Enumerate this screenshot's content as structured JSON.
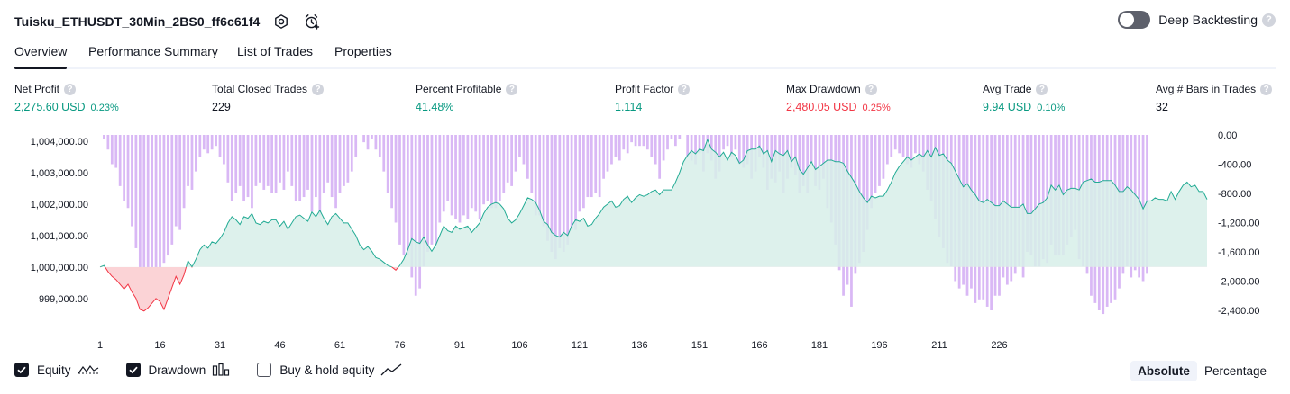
{
  "header": {
    "title": "Tuisku_ETHUSDT_30Min_2BS0_ff6c61f4",
    "deep_backtesting_label": "Deep Backtesting",
    "help_glyph": "?"
  },
  "tabs": [
    {
      "label": "Overview",
      "active": true
    },
    {
      "label": "Performance Summary",
      "active": false
    },
    {
      "label": "List of Trades",
      "active": false
    },
    {
      "label": "Properties",
      "active": false
    }
  ],
  "stats": [
    {
      "label": "Net Profit",
      "value": "2,275.60 USD",
      "sub": "0.23%",
      "color": "green"
    },
    {
      "label": "Total Closed Trades",
      "value": "229",
      "sub": "",
      "color": "dark"
    },
    {
      "label": "Percent Profitable",
      "value": "41.48%",
      "sub": "",
      "color": "green"
    },
    {
      "label": "Profit Factor",
      "value": "1.114",
      "sub": "",
      "color": "green"
    },
    {
      "label": "Max Drawdown",
      "value": "2,480.05 USD",
      "sub": "0.25%",
      "color": "red"
    },
    {
      "label": "Avg Trade",
      "value": "9.94 USD",
      "sub": "0.10%",
      "color": "green"
    },
    {
      "label": "Avg # Bars in Trades",
      "value": "32",
      "sub": "",
      "color": "dark"
    }
  ],
  "legend": {
    "equity_label": "Equity",
    "equity_checked": true,
    "drawdown_label": "Drawdown",
    "drawdown_checked": true,
    "buyhold_label": "Buy & hold equity",
    "buyhold_checked": false
  },
  "mode": {
    "absolute_label": "Absolute",
    "percentage_label": "Percentage",
    "active": "Absolute"
  },
  "colors": {
    "equity_line_up": "#22ab94",
    "equity_line_down": "#f23645",
    "equity_fill_up": "#d7efe9",
    "equity_fill_down": "#fbd3d6",
    "drawdown_bar": "#d9b8f5",
    "drawdown_bar_overlap": "#b9bbe6"
  },
  "chart_data": {
    "type": "area",
    "x_ticks": [
      1,
      16,
      31,
      46,
      61,
      76,
      91,
      106,
      121,
      136,
      151,
      166,
      181,
      196,
      211,
      226
    ],
    "left_axis": {
      "ticks": [
        1004000,
        1003000,
        1002000,
        1001000,
        1000000,
        999000
      ],
      "tick_labels": [
        "1,004,000.00",
        "1,003,000.00",
        "1,002,000.00",
        "1,001,000.00",
        "1,000,000.00",
        "999,000.00"
      ],
      "range": [
        998250,
        1004200
      ]
    },
    "right_axis": {
      "ticks": [
        0,
        -400,
        -800,
        -1200,
        -1600,
        -2000,
        -2400
      ],
      "tick_labels": [
        "0.00",
        "-400.00",
        "-800.00",
        "-1,200.00",
        "-1,600.00",
        "-2,000.00",
        "-2,400.00"
      ],
      "range": [
        -2560,
        0
      ]
    },
    "baseline": 1000000,
    "series": [
      {
        "name": "Equity",
        "values": [
          1000000,
          1000050,
          999850,
          999700,
          999600,
          999450,
          999300,
          999450,
          999200,
          999000,
          998650,
          998600,
          998700,
          998850,
          999000,
          998900,
          998650,
          999000,
          999350,
          999700,
          999450,
          999750,
          1000200,
          1000000,
          1000250,
          1000550,
          1000700,
          1000600,
          1000800,
          1000750,
          1000900,
          1001100,
          1001400,
          1001600,
          1001500,
          1001350,
          1001600,
          1001550,
          1001700,
          1001400,
          1001350,
          1001450,
          1001400,
          1001500,
          1001500,
          1001300,
          1001450,
          1001200,
          1001400,
          1001600,
          1001650,
          1001550,
          1001450,
          1001750,
          1001600,
          1001800,
          1001550,
          1001350,
          1001600,
          1001700,
          1001550,
          1001400,
          1001400,
          1001200,
          1001000,
          1000700,
          1000550,
          1000650,
          1000500,
          1000300,
          1000250,
          1000150,
          1000050,
          1000000,
          999900,
          1000050,
          1000250,
          1000550,
          1000900,
          1000800,
          1000750,
          1000950,
          1000700,
          1000500,
          1000700,
          1001000,
          1001300,
          1001150,
          1001100,
          1001300,
          1001200,
          1001250,
          1001300,
          1001100,
          1001250,
          1001400,
          1001700,
          1001900,
          1002000,
          1002050,
          1002000,
          1001850,
          1001550,
          1001400,
          1001500,
          1001700,
          1001950,
          1002200,
          1002150,
          1002050,
          1001800,
          1001450,
          1001350,
          1001100,
          1001000,
          1000950,
          1001100,
          1001000,
          1001300,
          1001500,
          1001450,
          1001550,
          1001300,
          1001350,
          1001550,
          1001700,
          1001900,
          1002000,
          1002100,
          1001900,
          1001950,
          1002150,
          1002250,
          1002050,
          1002200,
          1002300,
          1002250,
          1002300,
          1002400,
          1002450,
          1002300,
          1002450,
          1002450,
          1002450,
          1002700,
          1003000,
          1003350,
          1003550,
          1003700,
          1003600,
          1003750,
          1003700,
          1004050,
          1003750,
          1003650,
          1003500,
          1003650,
          1003400,
          1003650,
          1003550,
          1003300,
          1003400,
          1003700,
          1003750,
          1003750,
          1003850,
          1003600,
          1003700,
          1003350,
          1003700,
          1003600,
          1003550,
          1003700,
          1003350,
          1003500,
          1003100,
          1002950,
          1003150,
          1003350,
          1003100,
          1003200,
          1003300,
          1003400,
          1003400,
          1003350,
          1003350,
          1003300,
          1003050,
          1002850,
          1002650,
          1002400,
          1002200,
          1002050,
          1002250,
          1002200,
          1002250,
          1002250,
          1002450,
          1002700,
          1003000,
          1003200,
          1003350,
          1003500,
          1003400,
          1003500,
          1003600,
          1003500,
          1003700,
          1003500,
          1003800,
          1003550,
          1003600,
          1003400,
          1003300,
          1003050,
          1002800,
          1002550,
          1002650,
          1002450,
          1002300,
          1002100,
          1002050,
          1002150,
          1002050,
          1001950,
          1001950,
          1002100,
          1002000,
          1001900,
          1001900,
          1001900,
          1002000,
          1001700,
          1001700,
          1001850,
          1002000,
          1002050,
          1002200,
          1002600,
          1002450,
          1002600,
          1002300,
          1002450,
          1002500,
          1002500,
          1002450,
          1002700,
          1002750,
          1002800,
          1002700,
          1002700,
          1002750,
          1002750,
          1002750,
          1002600,
          1002400,
          1002400,
          1002550,
          1002450,
          1002300,
          1002150,
          1001850,
          1002100,
          1002100,
          1002200,
          1002150,
          1002150,
          1002100,
          1002400,
          1002150,
          1002400,
          1002600,
          1002700,
          1002550,
          1002600,
          1002400,
          1002400,
          1002150
        ]
      },
      {
        "name": "Drawdown",
        "values": [
          0,
          -60,
          -200,
          -400,
          -450,
          -700,
          -900,
          -1000,
          -1250,
          -1550,
          -1900,
          -2050,
          -2050,
          -2150,
          -2000,
          -1850,
          -1750,
          -1650,
          -1500,
          -1250,
          -1300,
          -1000,
          -700,
          -750,
          -500,
          -300,
          -200,
          -250,
          -200,
          -150,
          -300,
          -400,
          -650,
          -900,
          -800,
          -700,
          -900,
          -850,
          -1000,
          -700,
          -650,
          -750,
          -700,
          -800,
          -800,
          -650,
          -750,
          -500,
          -700,
          -900,
          -900,
          -850,
          -750,
          -1050,
          -850,
          -1100,
          -800,
          -650,
          -850,
          -1000,
          -800,
          -700,
          -650,
          -500,
          -300,
          0,
          -100,
          -200,
          -50,
          -200,
          -300,
          -500,
          -800,
          -1000,
          -1200,
          -1500,
          -1650,
          -1650,
          -1950,
          -2200,
          -2100,
          -1800,
          -1600,
          -1500,
          -1500,
          -1200,
          -1050,
          -900,
          -1100,
          -1150,
          -1200,
          -1100,
          -1150,
          -1000,
          -1050,
          -1150,
          -950,
          -900,
          -1000,
          -1000,
          -900,
          -800,
          -650,
          -700,
          -500,
          -300,
          -400,
          -600,
          -800,
          -1100,
          -1100,
          -1250,
          -1450,
          -1600,
          -1700,
          -1550,
          -1600,
          -1500,
          -1300,
          -1300,
          -1050,
          -1000,
          -850,
          -850,
          -800,
          -850,
          -600,
          -500,
          -400,
          -300,
          -350,
          -200,
          -250,
          -100,
          -150,
          -150,
          -150,
          -200,
          -300,
          -400,
          -600,
          -350,
          -200,
          -50,
          -150,
          -50,
          0,
          -300,
          -350,
          -400,
          -250,
          -500,
          -250,
          -350,
          -600,
          -500,
          -200,
          -150,
          -300,
          -200,
          -400,
          -450,
          -400,
          -600,
          -500,
          -300,
          -450,
          -750,
          -600,
          -650,
          -500,
          -800,
          -600,
          -450,
          -550,
          -800,
          -700,
          -800,
          -400,
          -700,
          -750,
          -600,
          -1000,
          -1200,
          -1500,
          -1850,
          -2200,
          -2050,
          -2350,
          -1900,
          -1750,
          -1600,
          -1300,
          -1000,
          -800,
          -700,
          -600,
          -400,
          -300,
          -200,
          -250,
          -300,
          -400,
          -450,
          -250,
          -400,
          -500,
          -750,
          -900,
          -1150,
          -1400,
          -1550,
          -1750,
          -1800,
          -2000,
          -2100,
          -2050,
          -2200,
          -2100,
          -2300,
          -2250,
          -2250,
          -2350,
          -2400,
          -2200,
          -2200,
          -1950,
          -2050,
          -2000,
          -1900,
          -1800,
          -1950,
          -1600,
          -1650,
          -1800,
          -1800,
          -1700,
          -1750,
          -1500,
          -1650,
          -1650,
          -1650,
          -1500,
          -1400,
          -1300,
          -1700,
          -1800,
          -1900,
          -2200,
          -2300,
          -2400,
          -2450,
          -2350,
          -2300,
          -2250,
          -2100,
          -1900,
          -1800,
          -1950,
          -1850,
          -1950,
          -2000,
          -1900
        ]
      }
    ]
  }
}
